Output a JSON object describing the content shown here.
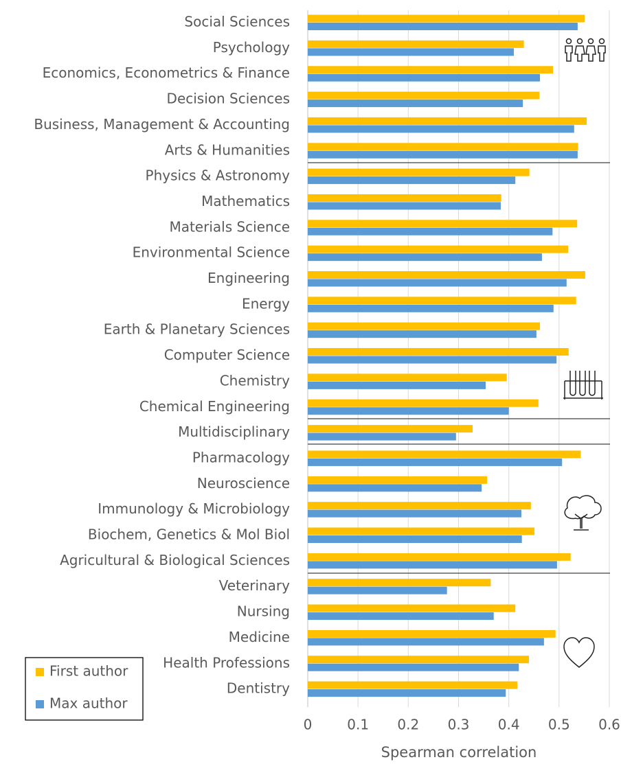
{
  "chart_data": {
    "type": "hbar",
    "xlabel": "Spearman correlation",
    "categories": [
      "Social Sciences",
      "Psychology",
      "Economics, Econometrics & Finance",
      "Decision Sciences",
      "Business, Management & Accounting",
      "Arts & Humanities",
      "Physics & Astronomy",
      "Mathematics",
      "Materials Science",
      "Environmental Science",
      "Engineering",
      "Energy",
      "Earth & Planetary Sciences",
      "Computer Science",
      "Chemistry",
      "Chemical Engineering",
      "Multidisciplinary",
      "Pharmacology",
      "Neuroscience",
      "Immunology & Microbiology",
      "Biochem, Genetics & Mol Biol",
      "Agricultural & Biological Sciences",
      "Veterinary",
      "Nursing",
      "Medicine",
      "Health Professions",
      "Dentistry"
    ],
    "series": [
      {
        "name": "First author",
        "color": "#ffc000",
        "values": [
          0.551,
          0.43,
          0.488,
          0.461,
          0.555,
          0.538,
          0.441,
          0.385,
          0.536,
          0.518,
          0.552,
          0.534,
          0.462,
          0.519,
          0.396,
          0.459,
          0.328,
          0.543,
          0.357,
          0.444,
          0.451,
          0.523,
          0.364,
          0.413,
          0.493,
          0.44,
          0.417
        ]
      },
      {
        "name": "Max author",
        "color": "#5b9bd5",
        "values": [
          0.537,
          0.41,
          0.462,
          0.428,
          0.53,
          0.537,
          0.413,
          0.384,
          0.487,
          0.466,
          0.515,
          0.489,
          0.455,
          0.495,
          0.354,
          0.4,
          0.295,
          0.506,
          0.346,
          0.425,
          0.426,
          0.496,
          0.277,
          0.37,
          0.47,
          0.42,
          0.394
        ]
      }
    ],
    "xlim": [
      0,
      0.6
    ],
    "xticks": [
      0,
      0.1,
      0.2,
      0.3,
      0.4,
      0.5,
      0.6
    ],
    "grid": true
  }
}
